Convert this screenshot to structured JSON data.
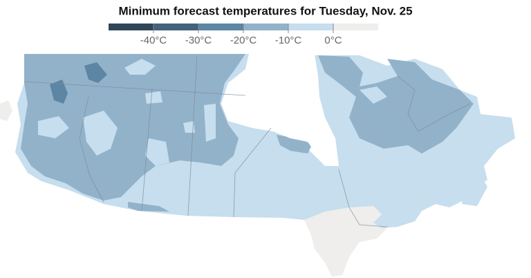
{
  "title": "Minimum forecast temperatures for Tuesday, Nov. 25",
  "legend": {
    "labels": [
      "-40°C",
      "-30°C",
      "-20°C",
      "-10°C",
      "0°C"
    ],
    "colors": [
      "#2e4658",
      "#43627b",
      "#5d85a4",
      "#92b2ca",
      "#c6deee",
      "#efeeec"
    ]
  }
}
